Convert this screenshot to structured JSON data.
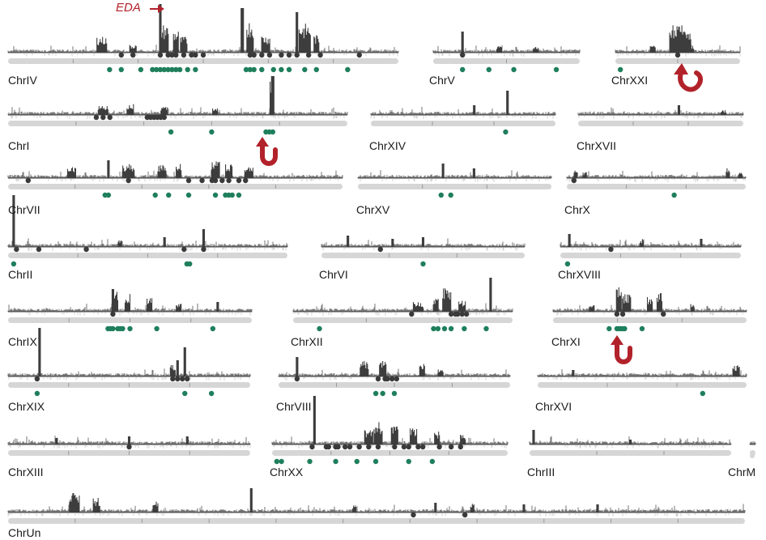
{
  "annotation": {
    "gene": "EDA"
  },
  "colors": {
    "signal": "#3d3d3d",
    "signal_light": "#bdbdbd",
    "track": "#d6d6d6",
    "dark_dot": "#3a3a3a",
    "green_dot": "#1f7f5c",
    "arrow": "#b2222a"
  },
  "chromosomes": [
    {
      "name": "ChrIV"
    },
    {
      "name": "ChrV"
    },
    {
      "name": "ChrXXI"
    },
    {
      "name": "ChrI"
    },
    {
      "name": "ChrXIV"
    },
    {
      "name": "ChrXVII"
    },
    {
      "name": "ChrVII"
    },
    {
      "name": "ChrXV"
    },
    {
      "name": "ChrX"
    },
    {
      "name": "ChrII"
    },
    {
      "name": "ChrVI"
    },
    {
      "name": "ChrXVIII"
    },
    {
      "name": "ChrIX"
    },
    {
      "name": "ChrXII"
    },
    {
      "name": "ChrXI"
    },
    {
      "name": "ChrXIX"
    },
    {
      "name": "ChrVIII"
    },
    {
      "name": "ChrXVI"
    },
    {
      "name": "ChrXIII"
    },
    {
      "name": "ChrXX"
    },
    {
      "name": "ChrIII"
    },
    {
      "name": "ChrM"
    },
    {
      "name": "ChrUn"
    }
  ]
}
